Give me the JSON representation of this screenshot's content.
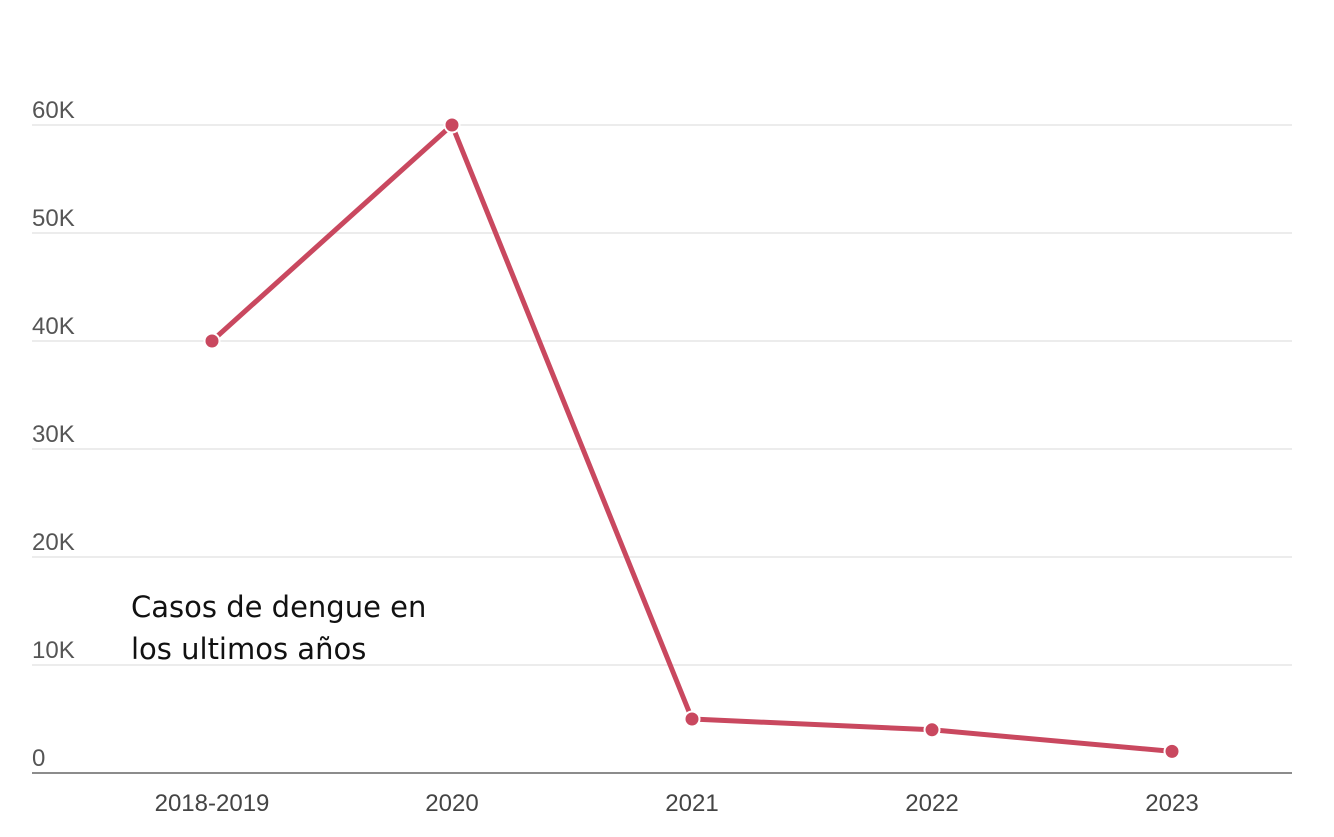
{
  "chart_data": {
    "type": "line",
    "categories": [
      "2018-2019",
      "2020",
      "2021",
      "2022",
      "2023"
    ],
    "series": [
      {
        "values": [
          40000,
          60000,
          5000,
          4000,
          2000
        ],
        "color": "#c9485f"
      }
    ],
    "ylim": [
      0,
      60000
    ],
    "y_ticks": [
      {
        "value": 0,
        "label": "0"
      },
      {
        "value": 10000,
        "label": "10K"
      },
      {
        "value": 20000,
        "label": "20K"
      },
      {
        "value": 30000,
        "label": "30K"
      },
      {
        "value": 40000,
        "label": "40K"
      },
      {
        "value": 50000,
        "label": "50K"
      },
      {
        "value": 60000,
        "label": "60K"
      }
    ],
    "grid": true,
    "annotation": {
      "lines": [
        "Casos de dengue en",
        "los ultimos años"
      ]
    }
  }
}
